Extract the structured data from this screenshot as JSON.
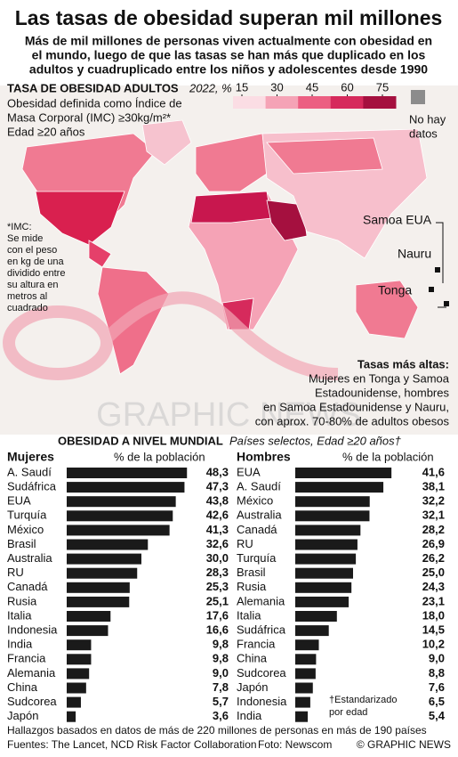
{
  "header": {
    "title": "Las tasas de obesidad superan mil millones",
    "subtitle": [
      "Más de mil millones de personas viven actualmente con obesidad en",
      "el mundo, luego de que las tasas se han más que duplicado en los",
      "adultos y cuadruplicado entre los niños y adolescentes desde 1990"
    ]
  },
  "map": {
    "title": "TASA DE OBESIDAD ADULTOS",
    "year": "2022, %",
    "legend": {
      "ticks": [
        15,
        30,
        45,
        60,
        75
      ],
      "colors": [
        "#fbdde4",
        "#f5a3b6",
        "#ec5f82",
        "#d62a5c",
        "#a5103f"
      ],
      "no_data": "No hay",
      "no_data_2": "datos",
      "no_data_color": "#8c8c8c"
    },
    "notes": [
      "Obesidad definida como Índice de",
      "Masa Corporal (IMC) ≥30kg/m²*",
      "Edad ≥20 años"
    ],
    "imc_note": [
      "*IMC:",
      "Se mide",
      "con el peso",
      "en kg de una",
      "dividido entre",
      "su altura en",
      "metros al",
      "cuadrado"
    ],
    "places": [
      "Samoa EUA",
      "Nauru",
      "Tonga"
    ],
    "highlight_title": "Tasas más altas:",
    "highlight": [
      "Mujeres en Tonga y Samoa",
      "Estadounidense, hombres",
      "en Samoa Estadounidense y Nauru,",
      "con aprox. 70-80% de adultos obesos"
    ],
    "watermark": "GRAPHIC NEWS"
  },
  "section": {
    "title": "OBESIDAD A NIVEL MUNDIAL",
    "subtitle": "Países selectos, Edad ≥20 años†",
    "footnote": [
      "†Estandarizado",
      "por edad"
    ]
  },
  "chart_data": [
    {
      "type": "bar",
      "title": "Mujeres",
      "value_label": "% de la población",
      "color": "#1a1a1a",
      "categories": [
        "A. Saudí",
        "Sudáfrica",
        "EUA",
        "Turquía",
        "México",
        "Brasil",
        "Australia",
        "RU",
        "Canadá",
        "Rusia",
        "Italia",
        "Indonesia",
        "India",
        "Francia",
        "Alemania",
        "China",
        "Sudcorea",
        "Japón"
      ],
      "values": [
        48.3,
        47.3,
        43.8,
        42.6,
        41.3,
        32.6,
        30.0,
        28.3,
        25.3,
        25.1,
        17.6,
        16.6,
        9.8,
        9.8,
        9.0,
        7.8,
        5.7,
        3.6
      ],
      "value_labels": [
        "48,3",
        "47,3",
        "43,8",
        "42,6",
        "41,3",
        "32,6",
        "30,0",
        "28,3",
        "25,3",
        "25,1",
        "17,6",
        "16,6",
        "9,8",
        "9,8",
        "9,0",
        "7,8",
        "5,7",
        "3,6"
      ]
    },
    {
      "type": "bar",
      "title": "Hombres",
      "value_label": "% de la población",
      "color": "#1a1a1a",
      "categories": [
        "EUA",
        "A. Saudí",
        "México",
        "Australia",
        "Canadá",
        "RU",
        "Turquía",
        "Brasil",
        "Rusia",
        "Alemania",
        "Italia",
        "Sudáfrica",
        "Francia",
        "China",
        "Sudcorea",
        "Japón",
        "Indonesia",
        "India"
      ],
      "values": [
        41.6,
        38.1,
        32.2,
        32.1,
        28.2,
        26.9,
        26.2,
        25.0,
        24.3,
        23.1,
        18.0,
        14.5,
        10.2,
        9.0,
        8.8,
        7.6,
        6.5,
        5.4
      ],
      "value_labels": [
        "41,6",
        "38,1",
        "32,2",
        "32,1",
        "28,2",
        "26,9",
        "26,2",
        "25,0",
        "24,3",
        "23,1",
        "18,0",
        "14,5",
        "10,2",
        "9,0",
        "8,8",
        "7,6",
        "6,5",
        "5,4"
      ]
    }
  ],
  "footer": {
    "note": "Hallazgos basados en datos de más de 220 millones de personas en más de 190 países",
    "sources": "Fuentes: The Lancet, NCD Risk Factor Collaboration",
    "photo": "Foto: Newscom",
    "credit": "© GRAPHIC NEWS"
  }
}
